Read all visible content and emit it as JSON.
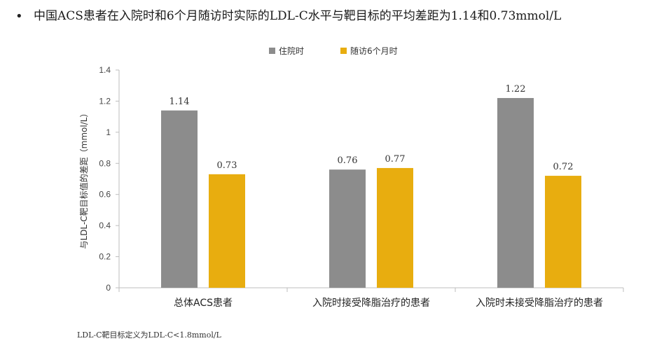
{
  "heading": "中国ACS患者在入院时和6个月随访时实际的LDL-C水平与靶目标的平均差距为1.14和0.73mmol/L",
  "footnote": "LDL-C靶目标定义为LDL-C<1.8mmol/L",
  "chart_data": {
    "type": "bar",
    "categories": [
      "总体ACS患者",
      "入院时接受降脂治疗的患者",
      "入院时未接受降脂治疗的患者"
    ],
    "series": [
      {
        "name": "住院时",
        "values": [
          1.14,
          0.76,
          1.22
        ],
        "color": "#8c8c8c",
        "labels": [
          "1.14",
          "0.76",
          "1.22"
        ]
      },
      {
        "name": "随访6个月时",
        "values": [
          0.73,
          0.77,
          0.72
        ],
        "color": "#e8ad0f",
        "labels": [
          "0.73",
          "0.77",
          "0.72"
        ]
      }
    ],
    "ylabel": "与LDL-C靶目标值的差距（mmol/L）",
    "ylim": [
      0,
      1.4
    ],
    "yticks": [
      "0",
      "0.2",
      "0.4",
      "0.6",
      "0.8",
      "1",
      "1.2",
      "1.4"
    ],
    "ytick_values": [
      0,
      0.2,
      0.4,
      0.6,
      0.8,
      1,
      1.2,
      1.4
    ],
    "legend_position": "top-center",
    "grid": false
  }
}
